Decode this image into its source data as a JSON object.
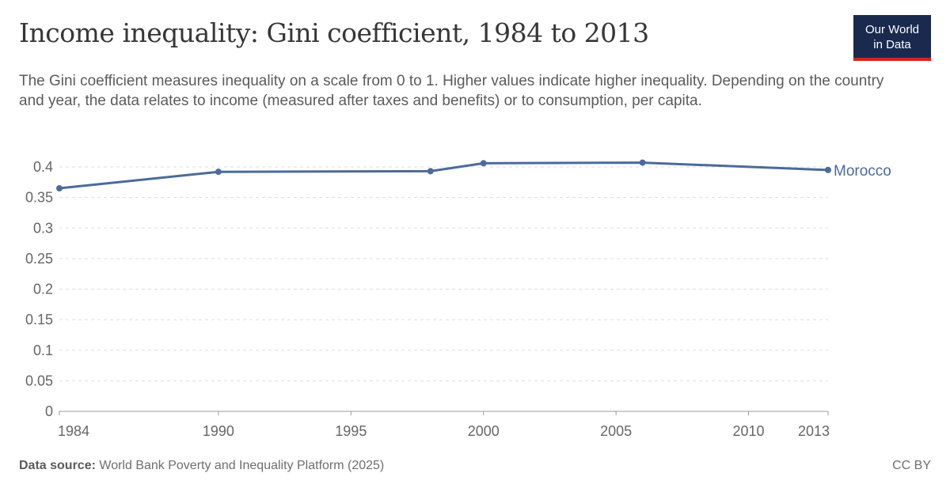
{
  "header": {
    "title": "Income inequality: Gini coefficient, 1984 to 2013",
    "subtitle": "The Gini coefficient measures inequality on a scale from 0 to 1. Higher values indicate higher inequality. Depending on the country and year, the data relates to income (measured after taxes and benefits) or to consumption, per capita."
  },
  "logo": {
    "line1": "Our World",
    "line2": "in Data"
  },
  "footer": {
    "source_label": "Data source:",
    "source_text": "World Bank Poverty and Inequality Platform (2025)",
    "license": "CC BY"
  },
  "chart_data": {
    "type": "line",
    "title": "Income inequality: Gini coefficient, 1984 to 2013",
    "xlabel": "",
    "ylabel": "",
    "xlim": [
      1984,
      2013
    ],
    "ylim": [
      0,
      0.4
    ],
    "x_ticks": [
      "1984",
      "1990",
      "1995",
      "2000",
      "2005",
      "2010",
      "2013"
    ],
    "y_ticks": [
      "0",
      "0.05",
      "0.1",
      "0.15",
      "0.2",
      "0.25",
      "0.3",
      "0.35",
      "0.4"
    ],
    "grid": true,
    "legend": "end-of-line label",
    "series": [
      {
        "name": "Morocco",
        "color": "#4c6a9c",
        "points": [
          {
            "x": 1984,
            "y": 0.365
          },
          {
            "x": 1990,
            "y": 0.392
          },
          {
            "x": 1998,
            "y": 0.393
          },
          {
            "x": 2000,
            "y": 0.406
          },
          {
            "x": 2006,
            "y": 0.407
          },
          {
            "x": 2013,
            "y": 0.395
          }
        ]
      }
    ]
  }
}
